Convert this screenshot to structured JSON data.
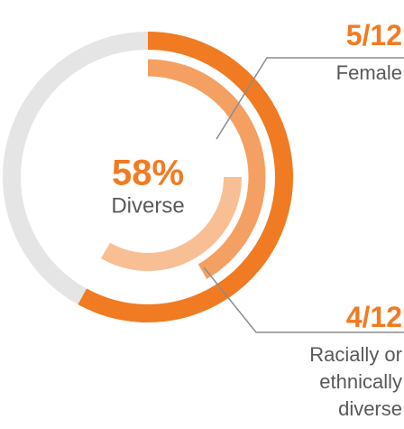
{
  "chart_data": {
    "type": "radial-bar",
    "series": [
      {
        "name": "Diverse",
        "values": [
          58
        ],
        "value_labels": [
          "58%"
        ],
        "max": 100,
        "color": "#f07b22"
      },
      {
        "name": "Female",
        "values": [
          5
        ],
        "value_labels": [
          "5/12"
        ],
        "max": 12,
        "color": "#f4a062"
      },
      {
        "name": "Racially or ethnically diverse",
        "values": [
          4
        ],
        "value_labels": [
          "4/12"
        ],
        "max": 12,
        "color": "#f8bf94"
      }
    ],
    "track_color": "#e5e5e5"
  }
}
